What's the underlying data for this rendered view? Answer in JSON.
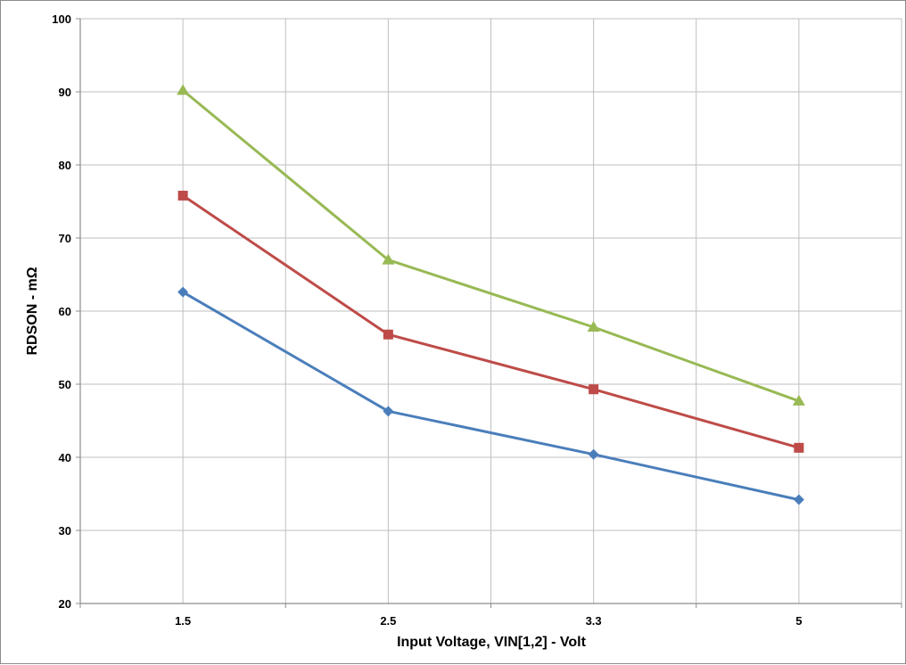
{
  "chart_data": {
    "type": "line",
    "x_categories": [
      "1.5",
      "2.5",
      "3.3",
      "5"
    ],
    "xlabel": "Input Voltage, VIN[1,2] - Volt",
    "ylabel": "RDSON - mΩ",
    "ylim": [
      20,
      100
    ],
    "yticks": [
      20,
      30,
      40,
      50,
      60,
      70,
      80,
      90,
      100
    ],
    "grid": true,
    "legend": "none",
    "series": [
      {
        "color": "#4a7ebb",
        "marker": "diamond",
        "values": [
          62.6,
          46.3,
          40.4,
          34.2
        ]
      },
      {
        "color": "#be4b48",
        "marker": "square",
        "values": [
          75.8,
          56.8,
          49.3,
          41.3
        ]
      },
      {
        "color": "#98b954",
        "marker": "triangle",
        "values": [
          90.2,
          67.0,
          57.8,
          47.7
        ]
      }
    ]
  }
}
